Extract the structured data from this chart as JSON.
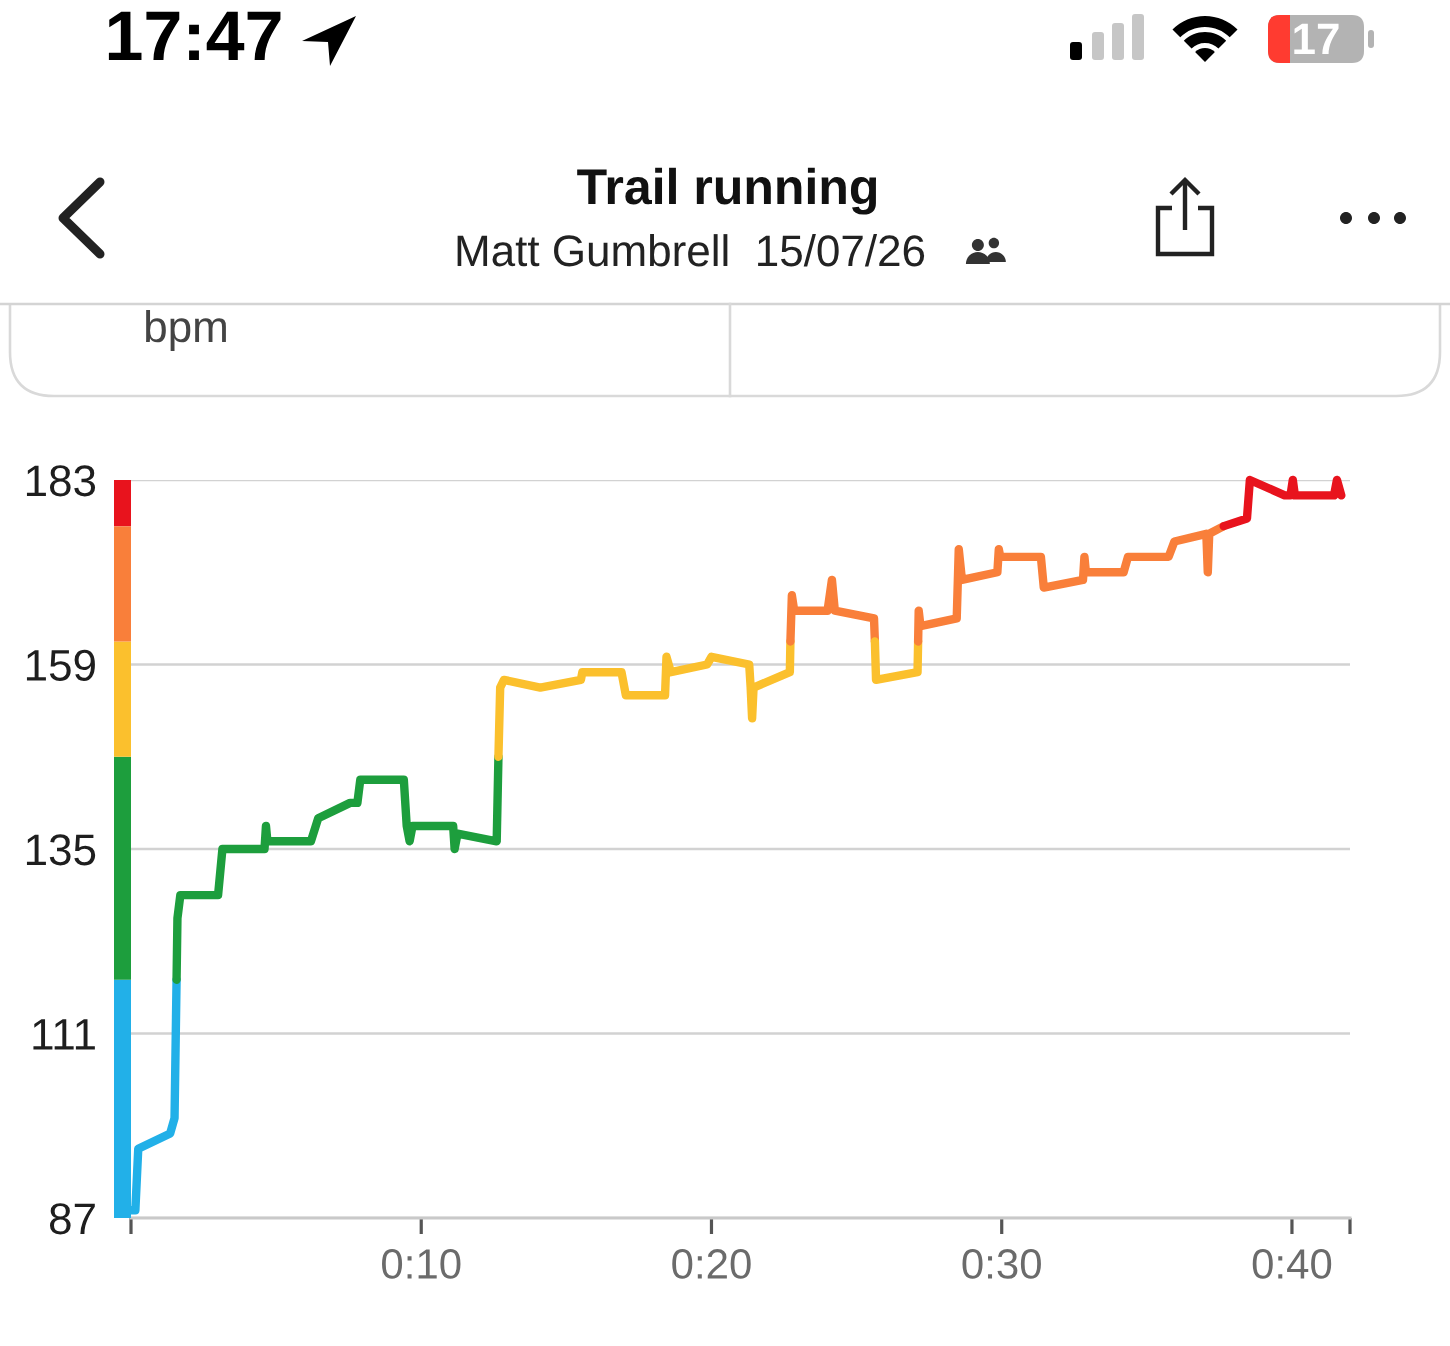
{
  "chart_data": {
    "type": "line",
    "title": "Trail running",
    "subtitle": "Matt Gumbrell  15/07/26",
    "annotations": [
      "17:47",
      "17",
      "bpm"
    ],
    "xlim": [
      0,
      42
    ],
    "xticks": [
      {
        "value": 0,
        "label": null
      },
      {
        "value": 10,
        "label": "0:10"
      },
      {
        "value": 20,
        "label": "0:20"
      },
      {
        "value": 30,
        "label": "0:30"
      },
      {
        "value": 40,
        "label": "0:40"
      },
      {
        "value": 42,
        "label": null
      }
    ],
    "ylim": [
      87,
      183
    ],
    "yticks": [
      87,
      111,
      135,
      159,
      183
    ],
    "grid": "y",
    "line_style": "solid",
    "series": [
      {
        "color": "#22b0e8",
        "x": [
          0,
          0.15,
          0.25,
          1.35,
          1.5,
          1.57
        ],
        "values": [
          88,
          88,
          96,
          98,
          100,
          118
        ]
      },
      {
        "color": "#1d9e3d",
        "x": [
          1.57,
          1.6,
          1.7,
          3.0,
          3.15,
          4.6,
          4.65,
          4.7,
          6.2,
          6.45,
          7.55,
          7.8,
          7.9,
          9.4,
          9.5,
          9.6,
          9.7,
          11.1,
          11.15,
          11.25,
          12.6,
          12.66
        ],
        "values": [
          118,
          126,
          129,
          129,
          135,
          135,
          138,
          136,
          136,
          139,
          141,
          141,
          144,
          144,
          138,
          136,
          138,
          138,
          135,
          137,
          136,
          147
        ]
      },
      {
        "color": "#fbc02d",
        "x": [
          12.66,
          12.72,
          12.85,
          14.1,
          15.5,
          15.55,
          16.9,
          17.05,
          18.4,
          18.45,
          18.6,
          19.85,
          20.0,
          21.3,
          21.35,
          21.4,
          21.45,
          22.7,
          22.72
        ],
        "values": [
          147,
          156,
          157,
          156,
          157,
          158,
          158,
          155,
          155,
          160,
          158,
          159,
          160,
          159,
          156,
          152,
          156,
          158,
          162
        ]
      },
      {
        "color": "#f97f3a",
        "x": [
          22.72,
          22.77,
          22.85,
          24.0,
          24.15,
          24.25,
          25.6,
          25.63
        ],
        "values": [
          162,
          168,
          166,
          166,
          170,
          166,
          165,
          162
        ]
      },
      {
        "color": "#fbc02d",
        "x": [
          25.63,
          25.67,
          27.1,
          27.12
        ],
        "values": [
          162,
          157,
          158,
          162
        ]
      },
      {
        "color": "#f97f3a",
        "x": [
          27.12,
          27.14,
          27.2,
          28.45,
          28.52,
          28.63,
          29.85,
          29.9,
          29.95,
          31.35,
          31.45,
          32.8,
          32.85,
          32.9,
          34.2,
          34.35,
          35.75,
          35.95,
          37.05,
          37.1,
          37.15,
          37.65
        ],
        "values": [
          162,
          166,
          164,
          165,
          174,
          170,
          171,
          174,
          173,
          173,
          169,
          170,
          173,
          171,
          171,
          173,
          173,
          175,
          176,
          171,
          176,
          177
        ]
      },
      {
        "color": "#e8131d",
        "x": [
          37.65,
          38.45,
          38.55,
          39.75,
          39.95,
          40.03,
          40.1,
          41.45,
          41.55,
          41.7
        ],
        "values": [
          177,
          178,
          183,
          181,
          181,
          183,
          181,
          181,
          183,
          181
        ]
      }
    ]
  }
}
